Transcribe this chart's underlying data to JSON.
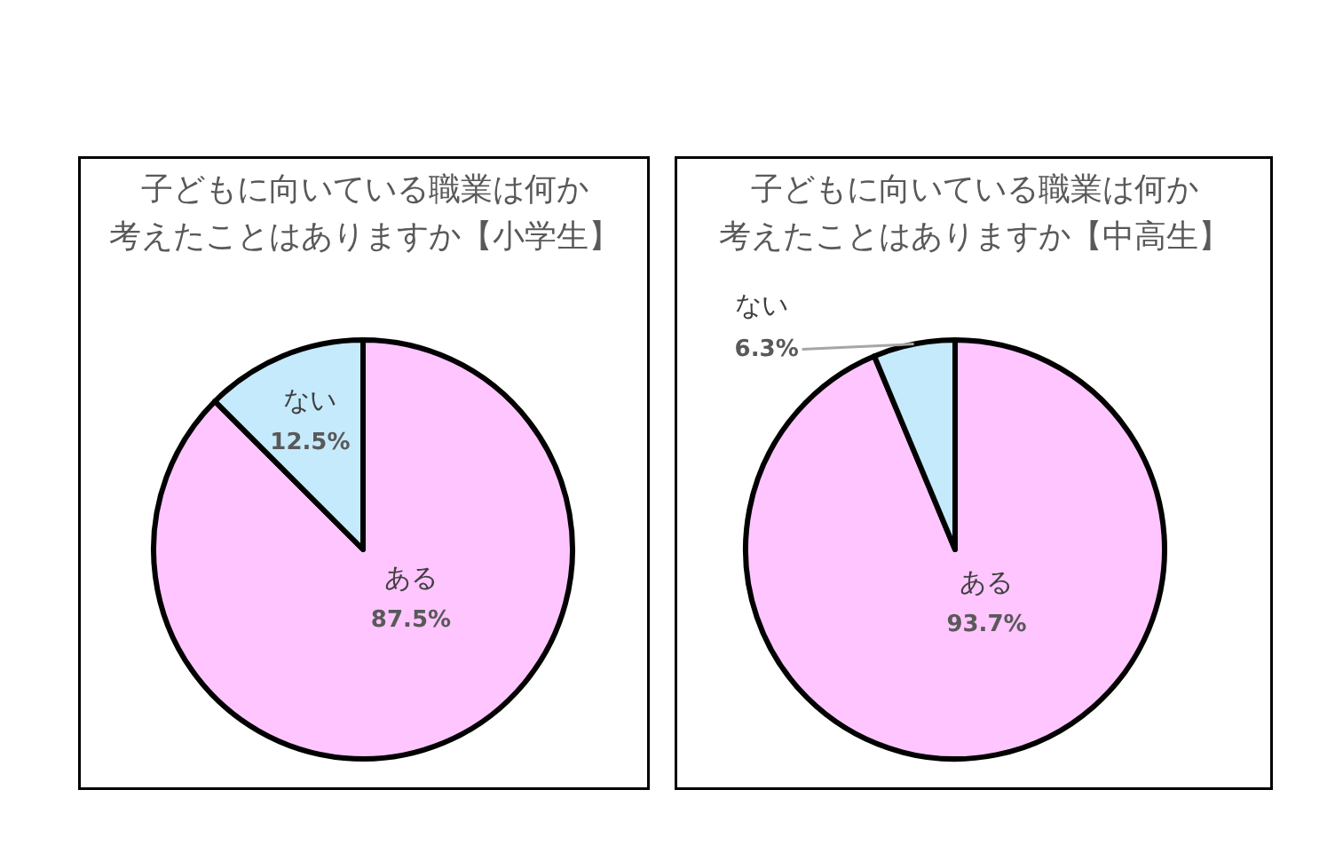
{
  "chart_data": [
    {
      "type": "pie",
      "title": "子どもに向いている職業は何か考えたことはありますか【小学生】",
      "categories": [
        "ある",
        "ない"
      ],
      "values": [
        87.5,
        12.5
      ],
      "value_labels": [
        "87.5%",
        "12.5%"
      ],
      "colors": [
        "#ffc5ff",
        "#c5eafc"
      ]
    },
    {
      "type": "pie",
      "title": "子どもに向いている職業は何か考えたことはありますか【中高生】",
      "categories": [
        "ある",
        "ない"
      ],
      "values": [
        93.7,
        6.3
      ],
      "value_labels": [
        "93.7%",
        "6.3%"
      ],
      "colors": [
        "#ffc5ff",
        "#c5eafc"
      ]
    }
  ]
}
